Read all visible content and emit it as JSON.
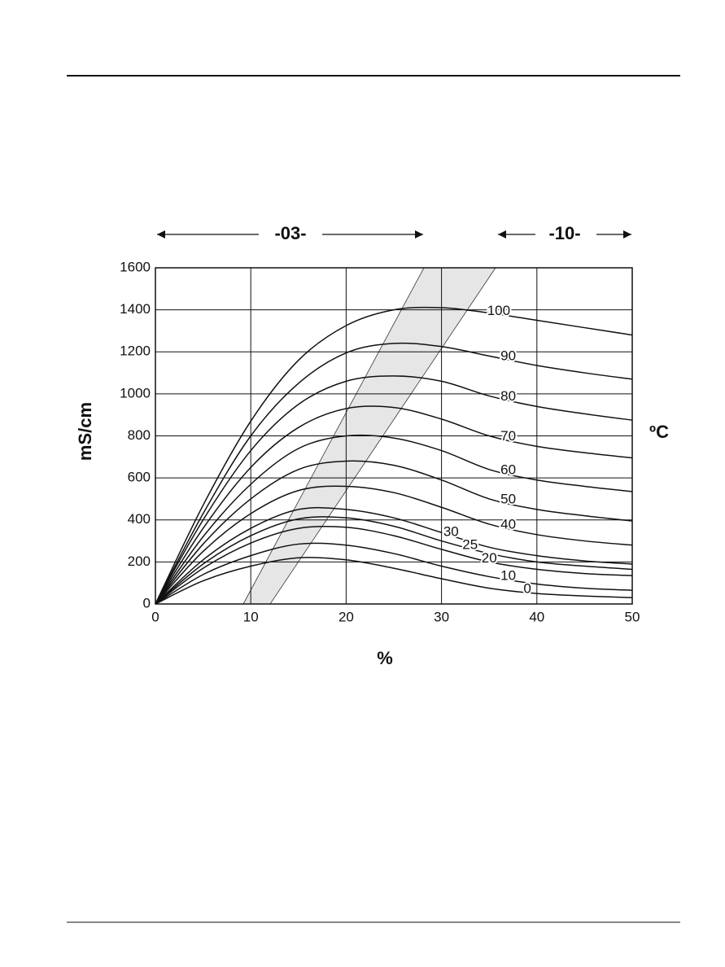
{
  "chart_data": {
    "type": "line",
    "x_label": "%",
    "y_label": "mS/cm",
    "legend_title": "ºC",
    "ranges": [
      "-03-",
      "-10-"
    ],
    "x": [
      0,
      5,
      10,
      15,
      20,
      25,
      30,
      35,
      40,
      45,
      50
    ],
    "series": [
      {
        "name": "100",
        "color": "#111111",
        "values": [
          0,
          470,
          870,
          1160,
          1325,
          1400,
          1410,
          1385,
          1350,
          1315,
          1280
        ]
      },
      {
        "name": "90",
        "color": "#111111",
        "values": [
          0,
          430,
          800,
          1050,
          1195,
          1240,
          1225,
          1180,
          1135,
          1100,
          1070
        ]
      },
      {
        "name": "80",
        "color": "#111111",
        "values": [
          0,
          400,
          730,
          950,
          1060,
          1085,
          1060,
          990,
          940,
          905,
          875
        ]
      },
      {
        "name": "70",
        "color": "#111111",
        "values": [
          0,
          360,
          650,
          840,
          930,
          935,
          880,
          800,
          750,
          720,
          695
        ]
      },
      {
        "name": "60",
        "color": "#111111",
        "values": [
          0,
          320,
          570,
          740,
          800,
          790,
          730,
          640,
          590,
          560,
          535
        ]
      },
      {
        "name": "50",
        "color": "#111111",
        "values": [
          0,
          285,
          500,
          640,
          680,
          660,
          590,
          500,
          450,
          420,
          395
        ]
      },
      {
        "name": "40",
        "color": "#111111",
        "values": [
          0,
          250,
          430,
          540,
          560,
          530,
          460,
          380,
          330,
          300,
          280
        ]
      },
      {
        "name": "30",
        "color": "#111111",
        "values": [
          0,
          210,
          360,
          450,
          450,
          410,
          340,
          270,
          230,
          205,
          190
        ]
      },
      {
        "name": "25",
        "color": "#111111",
        "values": [
          0,
          190,
          325,
          405,
          410,
          370,
          300,
          240,
          200,
          180,
          165
        ]
      },
      {
        "name": "20",
        "color": "#111111",
        "values": [
          0,
          170,
          290,
          360,
          365,
          325,
          260,
          200,
          165,
          145,
          135
        ]
      },
      {
        "name": "10",
        "color": "#111111",
        "values": [
          0,
          140,
          230,
          285,
          280,
          240,
          180,
          130,
          95,
          75,
          65
        ]
      },
      {
        "name": "0",
        "color": "#111111",
        "values": [
          0,
          110,
          180,
          220,
          210,
          170,
          120,
          75,
          50,
          38,
          30
        ]
      }
    ],
    "xlim": [
      0,
      50
    ],
    "xticks": [
      0,
      10,
      20,
      30,
      40,
      50
    ],
    "ylim": [
      0,
      1600
    ],
    "yticks": [
      0,
      200,
      400,
      600,
      800,
      1000,
      1200,
      1400,
      1600
    ],
    "grid": true
  }
}
